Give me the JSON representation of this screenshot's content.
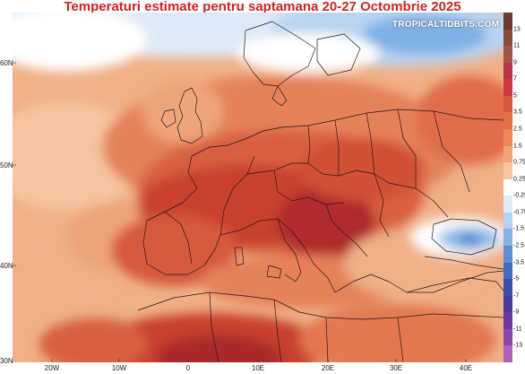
{
  "title": "Temperaturi estimate pentru saptamana 20-27 Octombrie 2025",
  "watermark": "TROPICALTIDBITS.COM",
  "axes": {
    "latitude_labels": [
      "60N",
      "50N",
      "40N",
      "30N"
    ],
    "longitude_labels": [
      "20W",
      "10W",
      "0",
      "10E",
      "20E",
      "30E",
      "40E"
    ]
  },
  "colorbar": {
    "labels": [
      "13",
      "11",
      "9",
      "7",
      "5",
      "3.5",
      "2.5",
      "1.5",
      "0.75",
      "0.25",
      "-0.25",
      "-0.75",
      "-1.5",
      "-2.5",
      "-3.5",
      "-5",
      "-7",
      "-9",
      "-11",
      "-13"
    ],
    "colors": [
      "#6b3b33",
      "#8a4a3c",
      "#a5544a",
      "#b8344a",
      "#cc3a3e",
      "#d8553e",
      "#e36f46",
      "#ec8a55",
      "#f2a574",
      "#f7c39c",
      "#ffffff",
      "#dce9f7",
      "#b6d1f0",
      "#86b2e4",
      "#5a8fd4",
      "#3e6ec0",
      "#3a4fa8",
      "#4a3a9a",
      "#6a3aa0",
      "#8c46aa",
      "#b060bc"
    ]
  },
  "map": {
    "anomaly_field": "temperature anomaly, week 20-27 Oct 2025",
    "colors": {
      "ocean_base": "#f2b98e",
      "warm_light": "#eea47a",
      "warm_mid": "#e58259",
      "warm_strong": "#d8603f",
      "warm_hot": "#c8402f",
      "warm_max": "#a82a2c",
      "neutral": "#ffffff",
      "cool_light": "#c7ddf4",
      "cool_mid": "#8fbbe8",
      "cool_strong": "#4f87d3",
      "border": "#2a1a14"
    }
  }
}
